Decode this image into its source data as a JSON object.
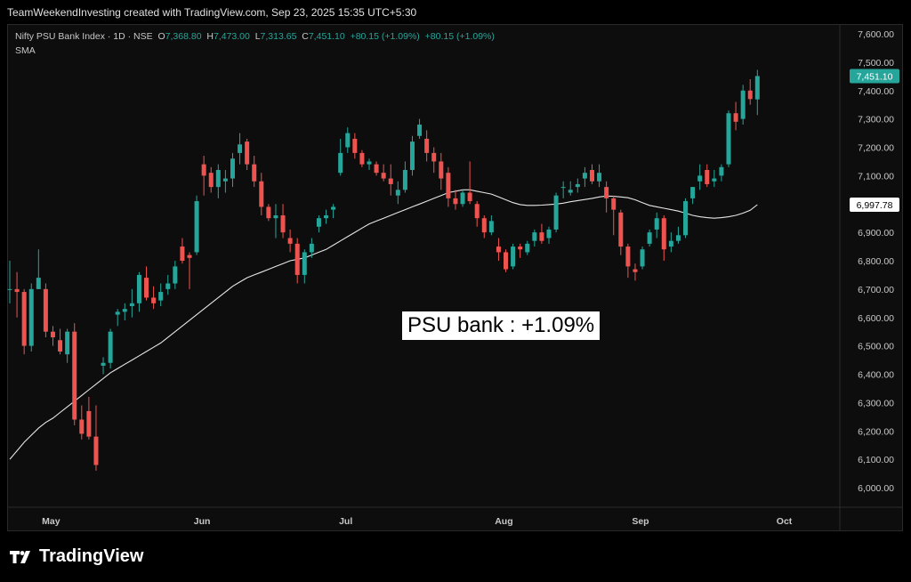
{
  "header": {
    "attribution": "TeamWeekendInvesting created with TradingView.com, Sep 23, 2025 15:35 UTC+5:30"
  },
  "legend": {
    "symbol": "Nifty PSU Bank Index · 1D · NSE",
    "o_label": "O",
    "o_value": "7,368.80",
    "h_label": "H",
    "h_value": "7,473.00",
    "l_label": "L",
    "l_value": "7,313.65",
    "c_label": "C",
    "c_value": "7,451.10",
    "change": "+80.15 (+1.09%)",
    "change2": "+80.15 (+1.09%)",
    "indicator": "SMA"
  },
  "annotation": "PSU bank : +1.09%",
  "price_badge": "7,451.10",
  "sma_badge": "6,997.78",
  "footer": {
    "brand": "TradingView"
  },
  "colors": {
    "up": "#26a69a",
    "down": "#ef5350",
    "sma": "#e6e6e6",
    "badge_up": "#26a69a"
  },
  "chart_data": {
    "type": "candlestick",
    "title": "Nifty PSU Bank Index · 1D · NSE",
    "ylim": [
      5950,
      7650
    ],
    "yticks": [
      "6,000.00",
      "6,100.00",
      "6,200.00",
      "6,300.00",
      "6,400.00",
      "6,500.00",
      "6,600.00",
      "6,700.00",
      "6,800.00",
      "6,900.00",
      "7,000.00",
      "7,100.00",
      "7,200.00",
      "7,300.00",
      "7,400.00",
      "7,500.00",
      "7,600.00"
    ],
    "ytick_values": [
      6000,
      6100,
      6200,
      6300,
      6400,
      6500,
      6600,
      6700,
      6800,
      6900,
      7000,
      7100,
      7200,
      7300,
      7400,
      7500,
      7600
    ],
    "xticks": [
      {
        "label": "May",
        "index": 5
      },
      {
        "label": "Jun",
        "index": 26
      },
      {
        "label": "Jul",
        "index": 46
      },
      {
        "label": "Aug",
        "index": 68
      },
      {
        "label": "Sep",
        "index": 87
      },
      {
        "label": "Oct",
        "index": 107
      }
    ],
    "ohlc": [
      [
        6700,
        6800,
        6650,
        6700
      ],
      [
        6700,
        6760,
        6600,
        6690
      ],
      [
        6690,
        6700,
        6470,
        6500
      ],
      [
        6500,
        6720,
        6480,
        6700
      ],
      [
        6700,
        6840,
        6700,
        6740
      ],
      [
        6700,
        6720,
        6530,
        6550
      ],
      [
        6550,
        6570,
        6500,
        6530
      ],
      [
        6520,
        6560,
        6470,
        6480
      ],
      [
        6470,
        6560,
        6440,
        6550
      ],
      [
        6550,
        6580,
        6220,
        6240
      ],
      [
        6240,
        6290,
        6170,
        6190
      ],
      [
        6270,
        6320,
        6170,
        6180
      ],
      [
        6180,
        6290,
        6060,
        6080
      ],
      [
        6430,
        6460,
        6400,
        6440
      ],
      [
        6440,
        6560,
        6420,
        6550
      ],
      [
        6610,
        6630,
        6570,
        6620
      ],
      [
        6620,
        6650,
        6590,
        6630
      ],
      [
        6640,
        6700,
        6600,
        6650
      ],
      [
        6650,
        6760,
        6620,
        6750
      ],
      [
        6740,
        6780,
        6660,
        6670
      ],
      [
        6670,
        6710,
        6630,
        6650
      ],
      [
        6660,
        6720,
        6640,
        6690
      ],
      [
        6700,
        6750,
        6680,
        6720
      ],
      [
        6720,
        6800,
        6700,
        6780
      ],
      [
        6850,
        6880,
        6790,
        6800
      ],
      [
        6820,
        6830,
        6700,
        6810
      ],
      [
        6830,
        7030,
        6820,
        7010
      ],
      [
        7140,
        7170,
        7030,
        7100
      ],
      [
        7110,
        7130,
        7040,
        7060
      ],
      [
        7060,
        7140,
        7020,
        7120
      ],
      [
        7080,
        7120,
        7040,
        7090
      ],
      [
        7090,
        7180,
        7060,
        7160
      ],
      [
        7180,
        7250,
        7140,
        7210
      ],
      [
        7220,
        7230,
        7120,
        7140
      ],
      [
        7140,
        7170,
        7060,
        7080
      ],
      [
        7080,
        7110,
        6960,
        6990
      ],
      [
        6990,
        7000,
        6940,
        6950
      ],
      [
        6950,
        7000,
        6880,
        6960
      ],
      [
        6960,
        7000,
        6880,
        6900
      ],
      [
        6880,
        6910,
        6830,
        6860
      ],
      [
        6860,
        6880,
        6720,
        6750
      ],
      [
        6750,
        6840,
        6720,
        6830
      ],
      [
        6830,
        6880,
        6810,
        6860
      ],
      [
        6920,
        6960,
        6900,
        6950
      ],
      [
        6950,
        6980,
        6930,
        6960
      ],
      [
        6980,
        7000,
        6950,
        6990
      ],
      [
        7110,
        7230,
        7100,
        7180
      ],
      [
        7200,
        7270,
        7180,
        7250
      ],
      [
        7230,
        7250,
        7160,
        7180
      ],
      [
        7180,
        7190,
        7130,
        7140
      ],
      [
        7140,
        7160,
        7120,
        7150
      ],
      [
        7140,
        7150,
        7100,
        7110
      ],
      [
        7110,
        7140,
        7080,
        7090
      ],
      [
        7090,
        7140,
        7030,
        7070
      ],
      [
        7030,
        7080,
        7000,
        7050
      ],
      [
        7050,
        7150,
        7040,
        7120
      ],
      [
        7120,
        7240,
        7100,
        7220
      ],
      [
        7240,
        7300,
        7230,
        7280
      ],
      [
        7230,
        7260,
        7150,
        7180
      ],
      [
        7180,
        7200,
        7110,
        7150
      ],
      [
        7150,
        7180,
        7050,
        7090
      ],
      [
        7110,
        7130,
        6990,
        7020
      ],
      [
        7020,
        7050,
        6980,
        7000
      ],
      [
        7000,
        7050,
        6990,
        7040
      ],
      [
        7040,
        7150,
        7000,
        7010
      ],
      [
        7000,
        7010,
        6920,
        6950
      ],
      [
        6950,
        6960,
        6880,
        6900
      ],
      [
        6900,
        6960,
        6890,
        6940
      ],
      [
        6850,
        6880,
        6800,
        6830
      ],
      [
        6830,
        6840,
        6760,
        6770
      ],
      [
        6780,
        6860,
        6770,
        6850
      ],
      [
        6850,
        6860,
        6810,
        6840
      ],
      [
        6830,
        6870,
        6820,
        6860
      ],
      [
        6870,
        6910,
        6850,
        6900
      ],
      [
        6900,
        6930,
        6860,
        6870
      ],
      [
        6880,
        6920,
        6860,
        6910
      ],
      [
        6910,
        7040,
        6900,
        7030
      ],
      [
        7060,
        7080,
        7020,
        7060
      ],
      [
        7040,
        7080,
        7030,
        7050
      ],
      [
        7060,
        7090,
        7040,
        7070
      ],
      [
        7090,
        7130,
        7060,
        7110
      ],
      [
        7120,
        7140,
        7070,
        7080
      ],
      [
        7080,
        7140,
        7060,
        7110
      ],
      [
        7060,
        7080,
        6970,
        7020
      ],
      [
        7020,
        7030,
        6890,
        6980
      ],
      [
        6970,
        6980,
        6820,
        6850
      ],
      [
        6850,
        6860,
        6740,
        6780
      ],
      [
        6770,
        6790,
        6730,
        6760
      ],
      [
        6780,
        6850,
        6770,
        6840
      ],
      [
        6860,
        6910,
        6850,
        6900
      ],
      [
        6910,
        6970,
        6880,
        6950
      ],
      [
        6950,
        6960,
        6800,
        6840
      ],
      [
        6850,
        6900,
        6830,
        6870
      ],
      [
        6870,
        6920,
        6860,
        6890
      ],
      [
        6890,
        7020,
        6880,
        7010
      ],
      [
        7020,
        7060,
        7000,
        7060
      ],
      [
        7080,
        7140,
        7050,
        7100
      ],
      [
        7120,
        7140,
        7060,
        7070
      ],
      [
        7080,
        7120,
        7060,
        7090
      ],
      [
        7100,
        7140,
        7080,
        7130
      ],
      [
        7140,
        7330,
        7130,
        7320
      ],
      [
        7320,
        7360,
        7260,
        7290
      ],
      [
        7300,
        7420,
        7280,
        7400
      ],
      [
        7400,
        7440,
        7350,
        7370
      ],
      [
        7368.8,
        7473,
        7313.65,
        7451.1
      ]
    ],
    "sma": [
      6100,
      6130,
      6160,
      6185,
      6210,
      6230,
      6245,
      6265,
      6285,
      6305,
      6325,
      6345,
      6365,
      6385,
      6405,
      6420,
      6435,
      6450,
      6465,
      6480,
      6495,
      6510,
      6530,
      6550,
      6570,
      6590,
      6610,
      6630,
      6650,
      6670,
      6690,
      6710,
      6725,
      6740,
      6750,
      6760,
      6770,
      6780,
      6790,
      6800,
      6805,
      6810,
      6820,
      6830,
      6840,
      6855,
      6870,
      6885,
      6900,
      6915,
      6930,
      6940,
      6950,
      6960,
      6970,
      6980,
      6990,
      7000,
      7010,
      7020,
      7030,
      7040,
      7045,
      7050,
      7050,
      7045,
      7040,
      7035,
      7025,
      7015,
      7005,
      6998,
      6995,
      6995,
      6996,
      6998,
      7000,
      7003,
      7008,
      7012,
      7016,
      7020,
      7025,
      7028,
      7027,
      7025,
      7022,
      7015,
      7005,
      6995,
      6990,
      6985,
      6980,
      6975,
      6968,
      6960,
      6955,
      6952,
      6950,
      6952,
      6955,
      6960,
      6968,
      6978,
      6997.78
    ]
  }
}
